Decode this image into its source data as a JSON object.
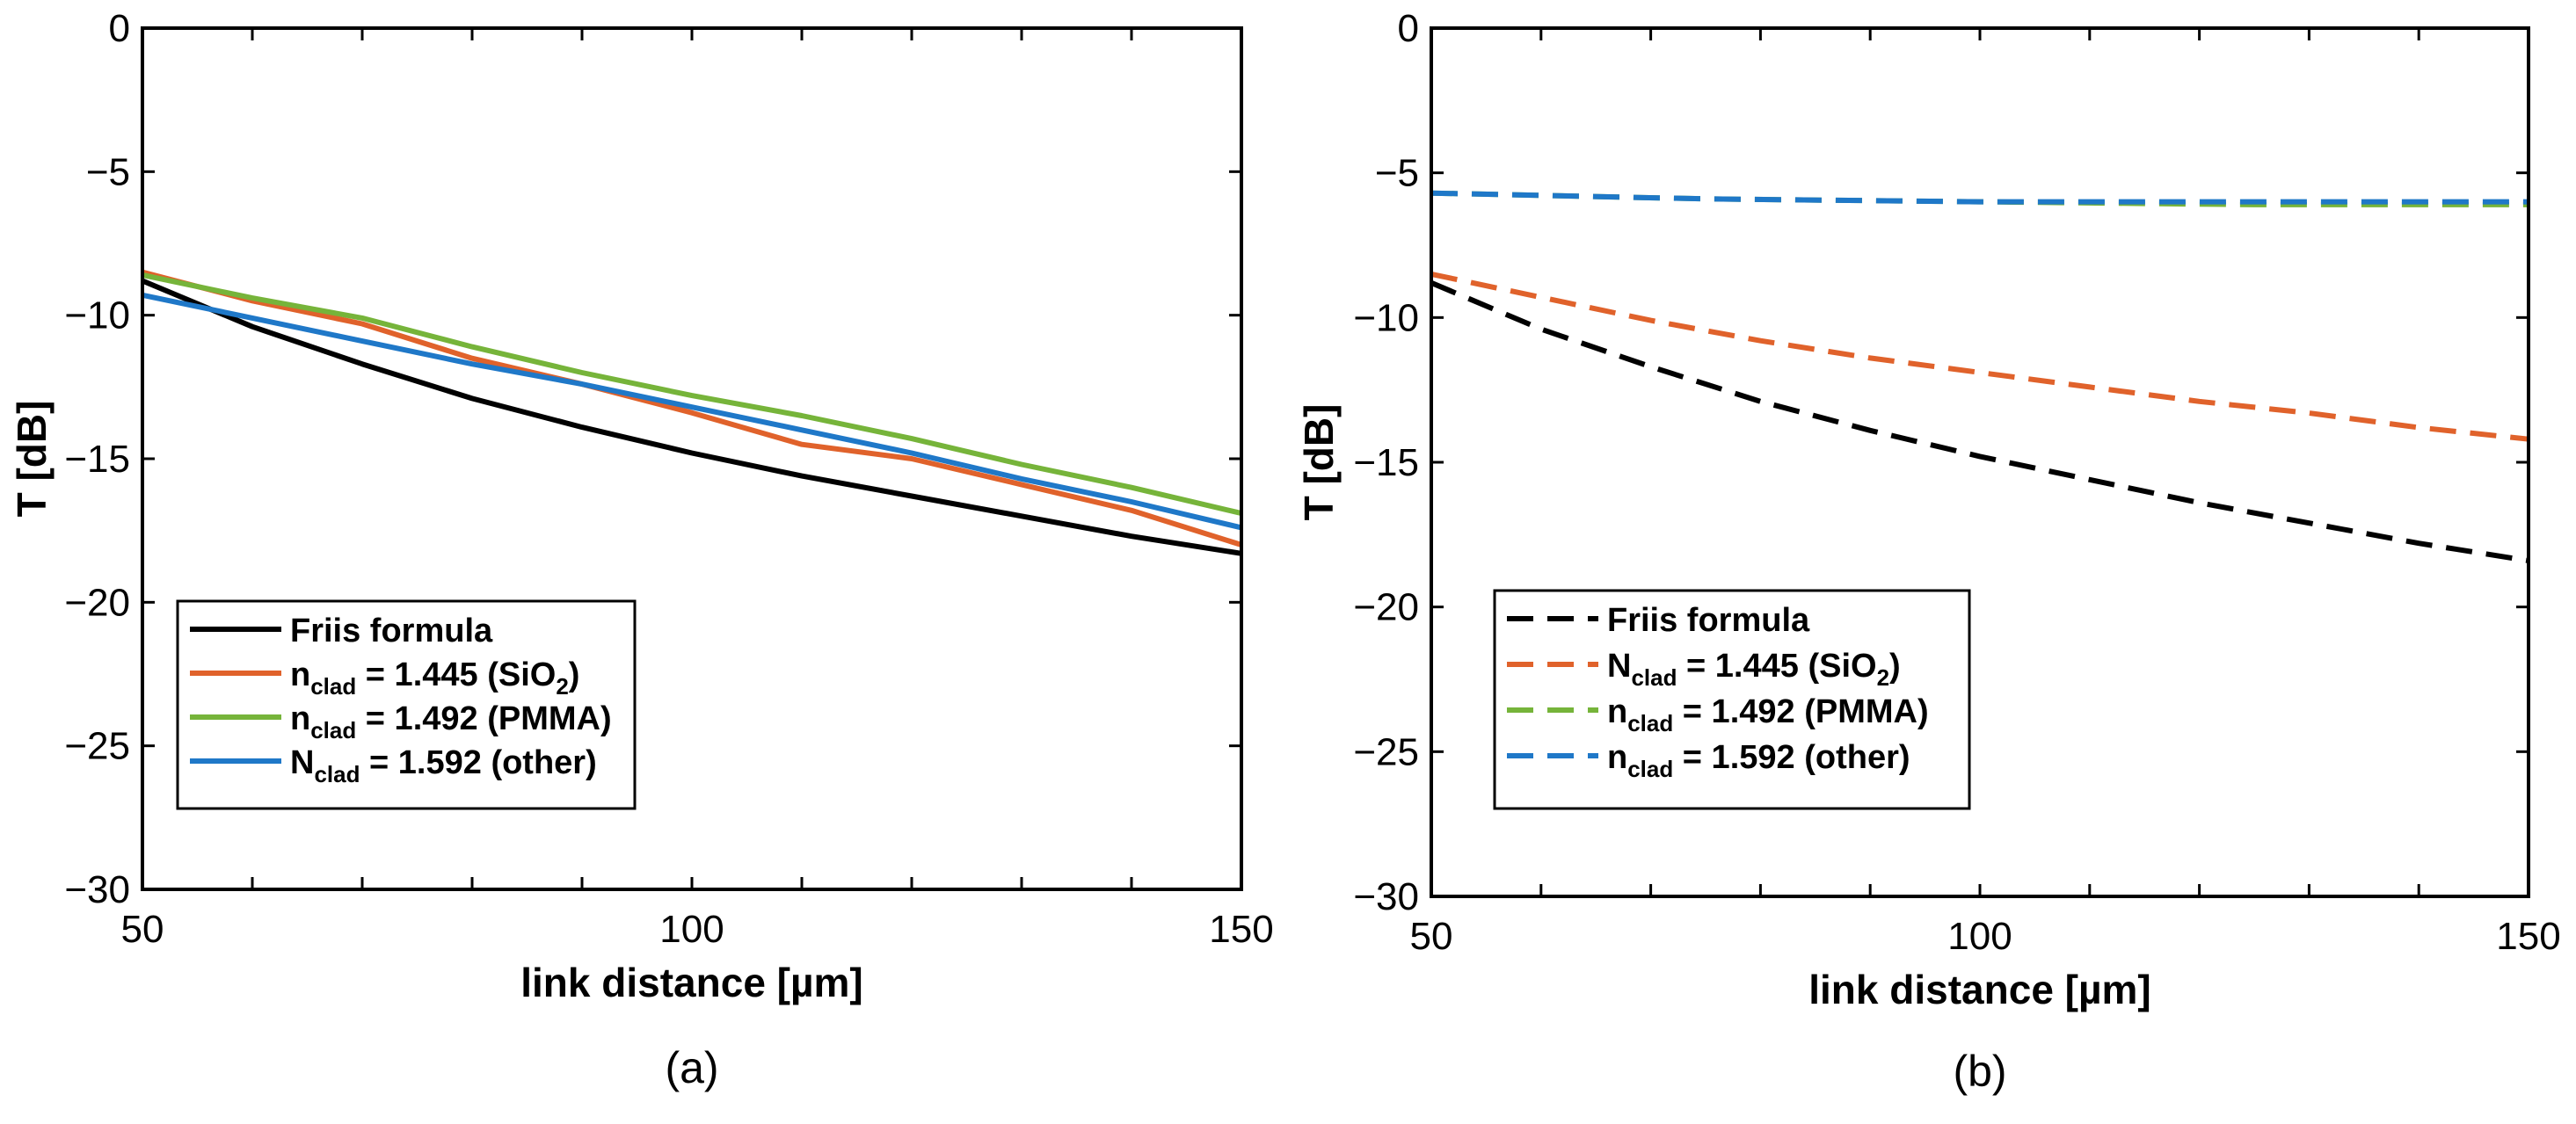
{
  "chart_data": [
    {
      "type": "line",
      "panel": "(a)",
      "xlabel": "link distance [µm]",
      "ylabel": "T [dB]",
      "xlim": [
        50,
        150
      ],
      "ylim": [
        -30,
        0
      ],
      "xticks": [
        50,
        100,
        150
      ],
      "yticks": [
        0,
        -5,
        -10,
        -15,
        -20,
        -25,
        -30
      ],
      "ytick_labels": [
        "0",
        "−5",
        "−10",
        "−15",
        "−20",
        "−25",
        "−30"
      ],
      "grid": false,
      "legend_position": "bottom-left",
      "series": [
        {
          "name": "Friis formula",
          "label": {
            "base": "Friis formula"
          },
          "color": "#000000",
          "dashed": false,
          "x": [
            50,
            60,
            70,
            80,
            90,
            100,
            110,
            120,
            130,
            140,
            150
          ],
          "y": [
            -8.8,
            -10.4,
            -11.7,
            -12.9,
            -13.9,
            -14.8,
            -15.6,
            -16.3,
            -17.0,
            -17.7,
            -18.3
          ]
        },
        {
          "name": "n_clad = 1.445 (SiO2)",
          "label": {
            "base": "n",
            "sub": "clad",
            "mid": " = 1.445 (SiO",
            "sub2": "2",
            "end": ")"
          },
          "color": "#e0622b",
          "dashed": false,
          "x": [
            50,
            60,
            70,
            80,
            90,
            100,
            110,
            120,
            130,
            140,
            150
          ],
          "y": [
            -8.5,
            -9.5,
            -10.3,
            -11.5,
            -12.4,
            -13.4,
            -14.5,
            -15.0,
            -15.9,
            -16.8,
            -18.0
          ]
        },
        {
          "name": "n_clad = 1.492 (PMMA)",
          "label": {
            "base": "n",
            "sub": "clad",
            "mid": " = 1.492 (PMMA)"
          },
          "color": "#76b43a",
          "dashed": false,
          "x": [
            50,
            60,
            70,
            80,
            90,
            100,
            110,
            120,
            130,
            140,
            150
          ],
          "y": [
            -8.6,
            -9.4,
            -10.1,
            -11.1,
            -12.0,
            -12.8,
            -13.5,
            -14.3,
            -15.2,
            -16.0,
            -16.9
          ]
        },
        {
          "name": "N_clad = 1.592 (other)",
          "label": {
            "base": "N",
            "sub": "clad",
            "mid": " = 1.592 (other)"
          },
          "color": "#1f78c8",
          "dashed": false,
          "x": [
            50,
            60,
            70,
            80,
            90,
            100,
            110,
            120,
            130,
            140,
            150
          ],
          "y": [
            -9.3,
            -10.1,
            -10.9,
            -11.7,
            -12.4,
            -13.2,
            -14.0,
            -14.8,
            -15.7,
            -16.5,
            -17.4
          ]
        }
      ]
    },
    {
      "type": "line",
      "panel": "(b)",
      "xlabel": "link distance [µm]",
      "ylabel": "T [dB]",
      "xlim": [
        50,
        150
      ],
      "ylim": [
        -30,
        0
      ],
      "xticks": [
        50,
        100,
        150
      ],
      "yticks": [
        0,
        -5,
        -10,
        -15,
        -20,
        -25,
        -30
      ],
      "ytick_labels": [
        "0",
        "−5",
        "−10",
        "−15",
        "−20",
        "−25",
        "−30"
      ],
      "grid": false,
      "legend_position": "bottom-left",
      "series": [
        {
          "name": "Friis formula",
          "label": {
            "base": "Friis formula"
          },
          "color": "#000000",
          "dashed": true,
          "x": [
            50,
            60,
            70,
            80,
            90,
            100,
            110,
            120,
            130,
            140,
            150
          ],
          "y": [
            -8.8,
            -10.4,
            -11.7,
            -12.9,
            -13.9,
            -14.8,
            -15.6,
            -16.4,
            -17.1,
            -17.8,
            -18.4
          ]
        },
        {
          "name": "N_clad = 1.445 (SiO2)",
          "label": {
            "base": "N",
            "sub": "clad",
            "mid": " = 1.445 (SiO",
            "sub2": "2",
            "end": ")"
          },
          "color": "#e0622b",
          "dashed": true,
          "x": [
            50,
            60,
            70,
            80,
            90,
            100,
            110,
            120,
            130,
            140,
            150
          ],
          "y": [
            -8.5,
            -9.3,
            -10.1,
            -10.8,
            -11.4,
            -11.9,
            -12.4,
            -12.9,
            -13.3,
            -13.8,
            -14.2
          ]
        },
        {
          "name": "n_clad = 1.492 (PMMA)",
          "label": {
            "base": "n",
            "sub": "clad",
            "mid": " = 1.492 (PMMA)"
          },
          "color": "#76b43a",
          "dashed": true,
          "x": [
            50,
            75,
            100,
            125,
            150
          ],
          "y": [
            -5.7,
            -5.9,
            -6.0,
            -6.1,
            -6.1
          ]
        },
        {
          "name": "n_clad = 1.592 (other)",
          "label": {
            "base": "n",
            "sub": "clad",
            "mid": " = 1.592 (other)"
          },
          "color": "#1f78c8",
          "dashed": true,
          "x": [
            50,
            75,
            100,
            125,
            150
          ],
          "y": [
            -5.7,
            -5.9,
            -6.0,
            -6.0,
            -6.0
          ]
        }
      ]
    }
  ]
}
